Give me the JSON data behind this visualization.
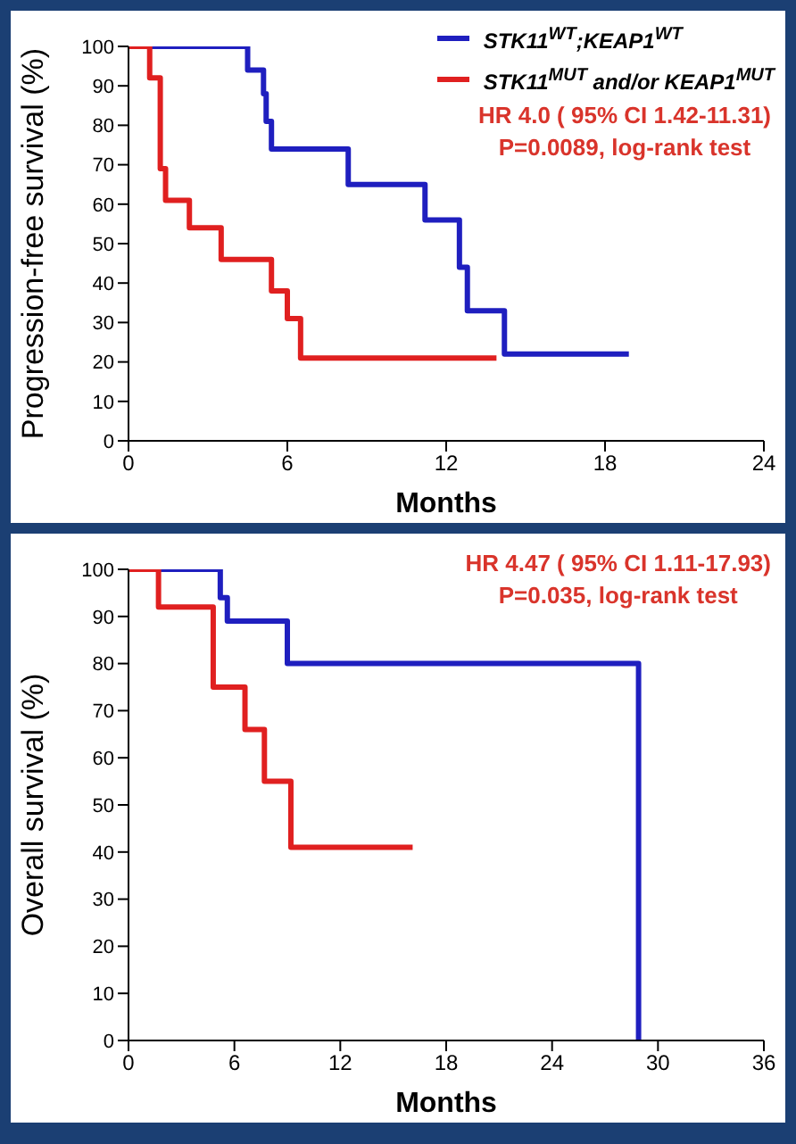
{
  "chart_data": [
    {
      "type": "step",
      "xlabel": "Months",
      "ylabel": "Progression-free survival (%)",
      "xlim": [
        0,
        24
      ],
      "xticks": [
        0,
        6,
        12,
        18,
        24
      ],
      "ylim": [
        0,
        100
      ],
      "yticks": [
        0,
        10,
        20,
        30,
        40,
        50,
        60,
        70,
        80,
        90,
        100
      ],
      "legend": "top right",
      "annotations": [
        "HR 4.0 ( 95% CI 1.42-11.31)",
        "P=0.0089, log-rank test"
      ],
      "series": [
        {
          "name": "STK11$^{WT}$;KEAP1$^{WT}$",
          "color": "#1f1fbf",
          "x": [
            0,
            4.5,
            5.1,
            5.2,
            5.4,
            8.3,
            11.2,
            12.5,
            12.8,
            14.2,
            18.9
          ],
          "values": [
            100,
            94,
            88,
            81,
            74,
            65,
            56,
            44,
            33,
            22,
            22
          ]
        },
        {
          "name": "STK11$^{MUT}$ and/or KEAP1$^{MUT}$",
          "color": "#e02020",
          "x": [
            0,
            0.8,
            1.2,
            1.4,
            2.3,
            3.5,
            5.4,
            6.0,
            6.5,
            13.9
          ],
          "values": [
            100,
            92,
            69,
            61,
            54,
            46,
            38,
            31,
            21,
            21
          ]
        }
      ]
    },
    {
      "type": "step",
      "xlabel": "Months",
      "ylabel": "Overall survival (%)",
      "xlim": [
        0,
        36
      ],
      "xticks": [
        0,
        6,
        12,
        18,
        24,
        30,
        36
      ],
      "ylim": [
        0,
        100
      ],
      "yticks": [
        0,
        10,
        20,
        30,
        40,
        50,
        60,
        70,
        80,
        90,
        100
      ],
      "annotations": [
        "HR 4.47 ( 95% CI 1.11-17.93)",
        "P=0.035, log-rank test"
      ],
      "series": [
        {
          "color": "#1f1fbf",
          "x": [
            0,
            5.2,
            5.6,
            9.0,
            28.9
          ],
          "values": [
            100,
            94,
            89,
            80,
            0
          ]
        },
        {
          "color": "#e02020",
          "x": [
            0,
            1.7,
            4.8,
            6.6,
            7.7,
            9.2,
            16.1
          ],
          "values": [
            100,
            92,
            75,
            66,
            55,
            41,
            41
          ]
        }
      ]
    }
  ]
}
